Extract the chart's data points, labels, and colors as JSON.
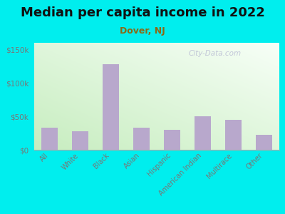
{
  "title": "Median per capita income in 2022",
  "subtitle": "Dover, NJ",
  "categories": [
    "All",
    "White",
    "Black",
    "Asian",
    "Hispanic",
    "American Indian",
    "Multirace",
    "Other"
  ],
  "values": [
    33000,
    28000,
    128000,
    33000,
    30000,
    50000,
    45000,
    22000
  ],
  "bar_color": "#b8a8cc",
  "background_outer": "#00eeee",
  "background_inner_topleft": "#d8f0d0",
  "background_inner_bottomright": "#f5fff5",
  "title_color": "#111111",
  "subtitle_color": "#8B6914",
  "tick_color": "#777777",
  "watermark_text": "City-Data.com",
  "ylim": [
    0,
    160000
  ],
  "yticks": [
    0,
    50000,
    100000,
    150000
  ],
  "ytick_labels": [
    "$0",
    "$50k",
    "$100k",
    "$150k"
  ],
  "title_fontsize": 13,
  "subtitle_fontsize": 9
}
